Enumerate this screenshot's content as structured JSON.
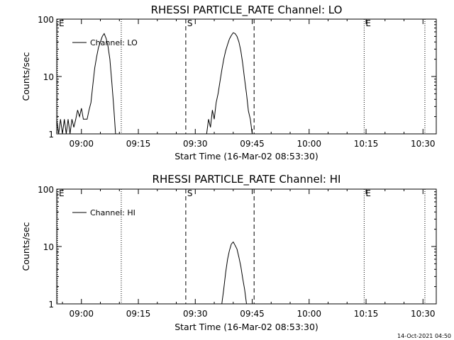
{
  "chart_data": [
    {
      "type": "line",
      "title": "RHESSI PARTICLE_RATE Channel: LO",
      "xlabel": "Start Time (16-Mar-02 08:53:30)",
      "ylabel": "Counts/sec",
      "y_scale": "log",
      "ylim": [
        1,
        100
      ],
      "xlim": [
        "08:53:30",
        "10:33:30"
      ],
      "x_ticks": [
        "09:00",
        "09:15",
        "09:30",
        "09:45",
        "10:00",
        "10:15",
        "10:30"
      ],
      "y_ticks": [
        "1",
        "10",
        "100"
      ],
      "legend": {
        "label": "Channel: LO",
        "placement": "top-left"
      },
      "event_lines": [
        {
          "label": "E",
          "time": "08:53:30",
          "style": "dotted"
        },
        {
          "label": "",
          "time": "09:10:30",
          "style": "dotted"
        },
        {
          "label": "S",
          "time": "09:27:30",
          "style": "dashed"
        },
        {
          "label": "",
          "time": "09:45:30",
          "style": "dashed"
        },
        {
          "label": "E",
          "time": "10:14:30",
          "style": "dotted"
        },
        {
          "label": "",
          "time": "10:30:30",
          "style": "dotted"
        }
      ],
      "series": [
        {
          "name": "Channel: LO",
          "segments": [
            {
              "x": [
                "08:53:30",
                "08:54:00",
                "08:54:30",
                "08:55:00",
                "08:55:30",
                "08:56:00",
                "08:56:30",
                "08:57:00",
                "08:57:30",
                "08:58:00",
                "08:58:30",
                "08:59:00",
                "08:59:30",
                "09:00:00",
                "09:00:30",
                "09:01:00",
                "09:01:30",
                "09:02:00",
                "09:02:30",
                "09:03:00",
                "09:03:30",
                "09:04:00",
                "09:04:30",
                "09:05:00",
                "09:05:30",
                "09:06:00",
                "09:06:30",
                "09:07:00",
                "09:07:30",
                "09:08:00",
                "09:08:30",
                "09:09:00"
              ],
              "y": [
                1.8,
                1.0,
                1.8,
                1.0,
                1.8,
                1.0,
                1.8,
                1.0,
                1.8,
                1.3,
                1.8,
                2.6,
                2.0,
                2.8,
                1.8,
                1.8,
                1.8,
                2.6,
                3.5,
                7.0,
                14.0,
                22.0,
                32.0,
                40.0,
                50.0,
                56.0,
                46.0,
                34.0,
                20.0,
                8.0,
                3.0,
                1.0
              ]
            },
            {
              "x": [
                "09:33:00",
                "09:33:30",
                "09:34:00",
                "09:34:30",
                "09:35:00",
                "09:35:30",
                "09:36:00",
                "09:36:30",
                "09:37:00",
                "09:37:30",
                "09:38:00",
                "09:38:30",
                "09:39:00",
                "09:39:30",
                "09:40:00",
                "09:40:30",
                "09:41:00",
                "09:41:30",
                "09:42:00",
                "09:42:30",
                "09:43:00",
                "09:43:30",
                "09:44:00",
                "09:44:30",
                "09:45:00"
              ],
              "y": [
                1.0,
                1.8,
                1.3,
                2.6,
                1.8,
                3.5,
                5.0,
                8.0,
                13.0,
                20.0,
                28.0,
                36.0,
                45.0,
                52.0,
                58.0,
                56.0,
                50.0,
                40.0,
                28.0,
                17.0,
                9.0,
                5.0,
                2.5,
                1.8,
                1.0
              ]
            }
          ]
        }
      ]
    },
    {
      "type": "line",
      "title": "RHESSI PARTICLE_RATE Channel: HI",
      "xlabel": "Start Time (16-Mar-02 08:53:30)",
      "ylabel": "Counts/sec",
      "y_scale": "log",
      "ylim": [
        1,
        100
      ],
      "xlim": [
        "08:53:30",
        "10:33:30"
      ],
      "x_ticks": [
        "09:00",
        "09:15",
        "09:30",
        "09:45",
        "10:00",
        "10:15",
        "10:30"
      ],
      "y_ticks": [
        "1",
        "10",
        "100"
      ],
      "legend": {
        "label": "Channel: HI",
        "placement": "top-left"
      },
      "event_lines": [
        {
          "label": "E",
          "time": "08:53:30",
          "style": "dotted"
        },
        {
          "label": "",
          "time": "09:10:30",
          "style": "dotted"
        },
        {
          "label": "S",
          "time": "09:27:30",
          "style": "dashed"
        },
        {
          "label": "",
          "time": "09:45:30",
          "style": "dashed"
        },
        {
          "label": "E",
          "time": "10:14:30",
          "style": "dotted"
        },
        {
          "label": "",
          "time": "10:30:30",
          "style": "dotted"
        }
      ],
      "series": [
        {
          "name": "Channel: HI",
          "segments": [
            {
              "x": [
                "09:37:00",
                "09:37:30",
                "09:38:00",
                "09:38:30",
                "09:39:00",
                "09:39:30",
                "09:40:00",
                "09:40:30",
                "09:41:00",
                "09:41:30",
                "09:42:00",
                "09:42:30",
                "09:43:00",
                "09:43:30"
              ],
              "y": [
                1.0,
                1.8,
                3.5,
                6.0,
                8.5,
                11.0,
                12.0,
                10.5,
                9.0,
                6.5,
                4.5,
                2.8,
                1.8,
                1.0
              ]
            }
          ]
        }
      ]
    }
  ],
  "footer": {
    "timestamp": "14-Oct-2021 04:50"
  },
  "colors": {
    "background": "#ffffff",
    "foreground": "#000000"
  }
}
